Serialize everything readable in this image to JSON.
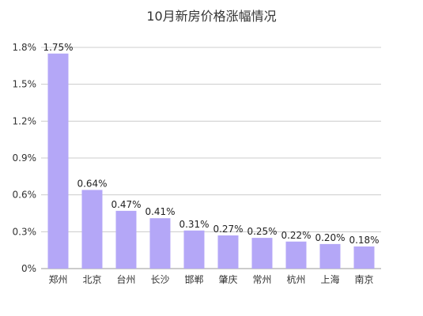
{
  "chart_data": {
    "type": "bar",
    "title": "10月新房价格涨幅情况",
    "xlabel": "",
    "ylabel": "",
    "categories": [
      "郑州",
      "北京",
      "台州",
      "长沙",
      "邯郸",
      "肇庆",
      "常州",
      "杭州",
      "上海",
      "南京"
    ],
    "values": [
      1.75,
      0.64,
      0.47,
      0.41,
      0.31,
      0.27,
      0.25,
      0.22,
      0.2,
      0.18
    ],
    "value_labels": [
      "1.75%",
      "0.64%",
      "0.47%",
      "0.41%",
      "0.31%",
      "0.27%",
      "0.25%",
      "0.22%",
      "0.20%",
      "0.18%"
    ],
    "ylim": [
      0,
      1.8
    ],
    "yticks": [
      0,
      0.3,
      0.6,
      0.9,
      1.2,
      1.5,
      1.8
    ],
    "ytick_labels": [
      "0%",
      "0.3%",
      "0.6%",
      "0.9%",
      "1.2%",
      "1.5%",
      "1.8%"
    ],
    "grid": true,
    "legend": "none",
    "colors": {
      "bar": "#b4a7f7",
      "grid": "#cccccc",
      "axis": "#999999"
    }
  }
}
